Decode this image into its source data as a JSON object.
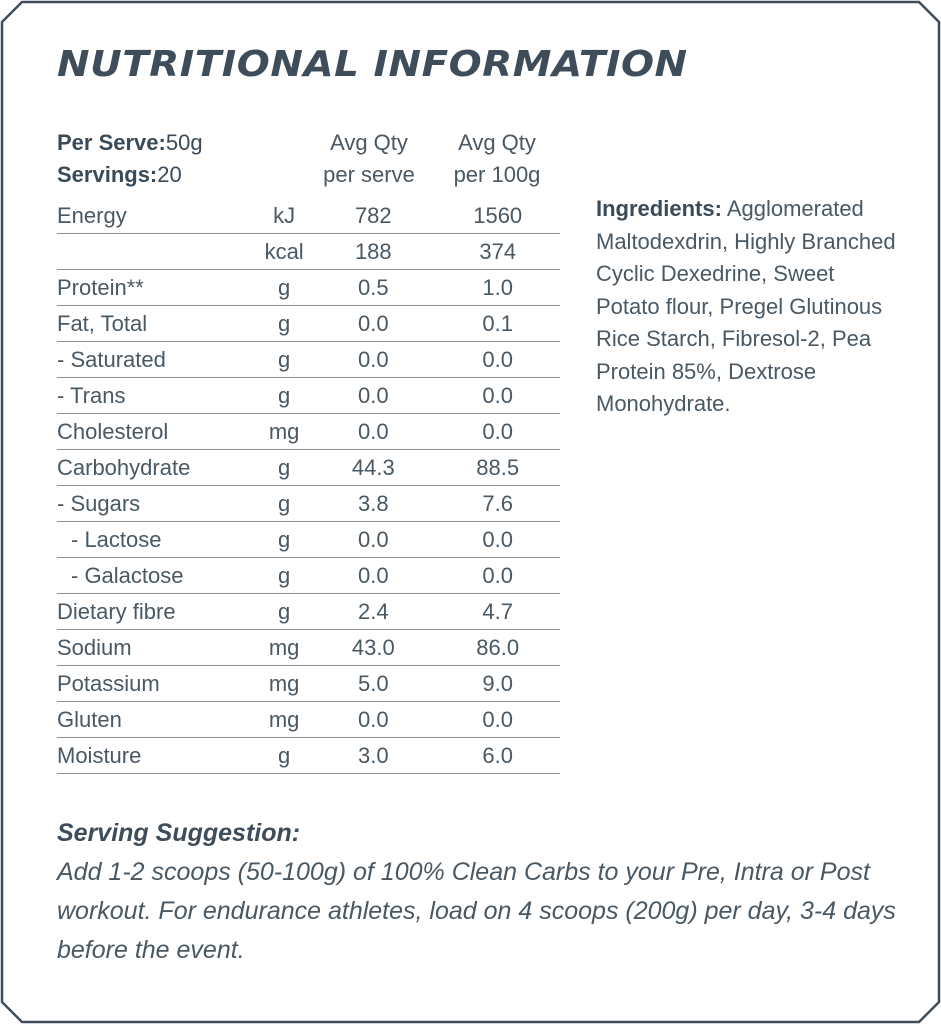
{
  "title": "NUTRITIONAL INFORMATION",
  "serving": {
    "per_serve_label": "Per Serve:",
    "per_serve_value": "50g",
    "servings_label": "Servings:",
    "servings_value": "20"
  },
  "columns": {
    "per_serve_line1": "Avg Qty",
    "per_serve_line2": "per serve",
    "per_100g_line1": "Avg Qty",
    "per_100g_line2": "per 100g"
  },
  "rows": [
    {
      "name": "Energy",
      "unit": "kJ",
      "per_serve": "782",
      "per_100g": "1560"
    },
    {
      "name": "",
      "unit": "kcal",
      "per_serve": "188",
      "per_100g": "374"
    },
    {
      "name": "Protein**",
      "unit": "g",
      "per_serve": "0.5",
      "per_100g": "1.0"
    },
    {
      "name": "Fat, Total",
      "unit": "g",
      "per_serve": "0.0",
      "per_100g": "0.1"
    },
    {
      "name": "- Saturated",
      "unit": "g",
      "per_serve": "0.0",
      "per_100g": "0.0"
    },
    {
      "name": "- Trans",
      "unit": "g",
      "per_serve": "0.0",
      "per_100g": "0.0"
    },
    {
      "name": "Cholesterol",
      "unit": "mg",
      "per_serve": "0.0",
      "per_100g": "0.0"
    },
    {
      "name": "Carbohydrate",
      "unit": "g",
      "per_serve": "44.3",
      "per_100g": "88.5"
    },
    {
      "name": "- Sugars",
      "unit": "g",
      "per_serve": "3.8",
      "per_100g": "7.6"
    },
    {
      "name": "- Lactose",
      "unit": "g",
      "per_serve": "0.0",
      "per_100g": "0.0"
    },
    {
      "name": "- Galactose",
      "unit": "g",
      "per_serve": "0.0",
      "per_100g": "0.0"
    },
    {
      "name": "Dietary fibre",
      "unit": "g",
      "per_serve": "2.4",
      "per_100g": "4.7"
    },
    {
      "name": "Sodium",
      "unit": "mg",
      "per_serve": "43.0",
      "per_100g": "86.0"
    },
    {
      "name": "Potassium",
      "unit": "mg",
      "per_serve": "5.0",
      "per_100g": "9.0"
    },
    {
      "name": "Gluten",
      "unit": "mg",
      "per_serve": "0.0",
      "per_100g": "0.0"
    },
    {
      "name": "Moisture",
      "unit": "g",
      "per_serve": "3.0",
      "per_100g": "6.0"
    }
  ],
  "ingredients": {
    "label": "Ingredients:",
    "text": "Agglomerated Maltodexdrin, Highly Branched Cyclic Dexedrine, Sweet Potato flour, Pregel Glutinous Rice Starch, Fibresol-2, Pea Protein 85%, Dextrose Monohydrate."
  },
  "serving_suggestion": {
    "heading": "Serving Suggestion:",
    "text": "Add 1-2 scoops (50-100g) of 100% Clean Carbs to your Pre, Intra or Post workout. For endurance athletes, load on 4 scoops (200g) per day, 3-4 days before the event."
  },
  "colors": {
    "frame": "#3f4d5a",
    "text": "#4a5863",
    "rule": "#8a949c"
  }
}
